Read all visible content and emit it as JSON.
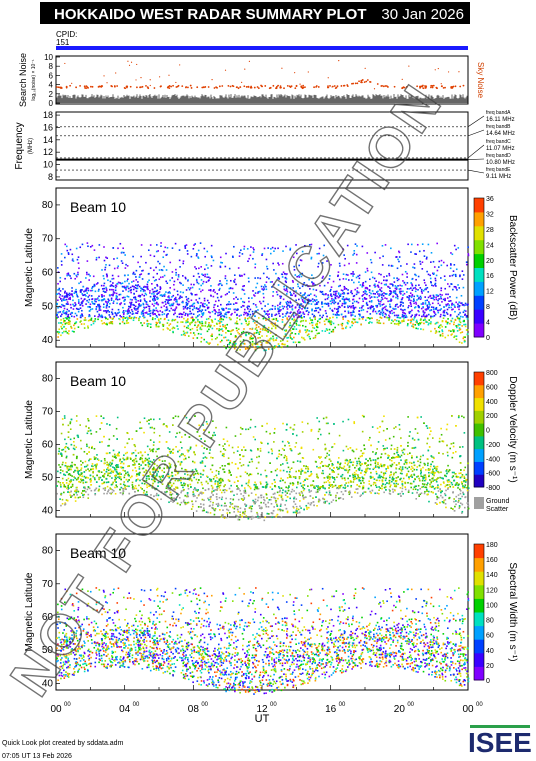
{
  "header": {
    "title": "HOKKAIDO WEST RADAR SUMMARY PLOT",
    "date": "30 Jan 2026",
    "cpid_label": "CPID:",
    "cpid_value": "151"
  },
  "noise_panel": {
    "ylabel": "Search Noise",
    "ylabel_sub": "log₁₀(noise) × 10⁻¹",
    "side_label": "Sky Noise",
    "ticks": [
      "10",
      "8",
      "6",
      "4",
      "2",
      "0"
    ]
  },
  "frequency_panel": {
    "ylabel": "Frequency",
    "ylabel_sub": "(MHz)",
    "ticks": [
      "18",
      "16",
      "14",
      "12",
      "10",
      "8"
    ],
    "bands": [
      {
        "name": "freq bandA",
        "value": "16.11 MHz"
      },
      {
        "name": "freq bandB",
        "value": "14.64 MHz"
      },
      {
        "name": "freq bandC",
        "value": "11.07 MHz"
      },
      {
        "name": "freq bandD",
        "value": "10.80 MHz"
      },
      {
        "name": "freq bandE",
        "value": "9.11 MHz"
      }
    ]
  },
  "panels": [
    {
      "beam": "Beam 10",
      "ylabel": "Magnetic Latitude",
      "yticks": [
        "80",
        "70",
        "60",
        "50",
        "40"
      ],
      "colorbar_label": "Backscatter Power (dB)",
      "colorbar_ticks": [
        "36",
        "32",
        "28",
        "24",
        "20",
        "16",
        "12",
        "8",
        "4",
        "0"
      ]
    },
    {
      "beam": "Beam 10",
      "ylabel": "Magnetic Latitude",
      "yticks": [
        "80",
        "70",
        "60",
        "50",
        "40"
      ],
      "colorbar_label": "Doppler Velocity (m s⁻¹)",
      "colorbar_ticks": [
        "800",
        "600",
        "400",
        "200",
        "0",
        "-200",
        "-400",
        "-600",
        "-800"
      ],
      "ground_label_1": "Ground",
      "ground_label_2": "Scatter"
    },
    {
      "beam": "Beam 10",
      "ylabel": "Magnetic Latitude",
      "yticks": [
        "80",
        "70",
        "60",
        "50",
        "40"
      ],
      "colorbar_label": "Spectral Width (m s⁻¹)",
      "colorbar_ticks": [
        "180",
        "160",
        "140",
        "120",
        "100",
        "80",
        "60",
        "40",
        "20",
        "0"
      ]
    }
  ],
  "xaxis": {
    "label": "UT",
    "ticks": [
      "00",
      "04",
      "08",
      "12",
      "16",
      "20",
      "00"
    ],
    "tick_sup": "00"
  },
  "watermark": "NOT FOR PUBLICATION",
  "footer": {
    "line1": "Quick Look plot created by sddata.adm",
    "line2": "07:05 UT 13 Feb 2026",
    "logo": "ISEE"
  },
  "colors": {
    "power_scale": [
      "#7f00ff",
      "#3a00ff",
      "#0040ff",
      "#00a0ff",
      "#00e0c0",
      "#00d000",
      "#80e000",
      "#e0e000",
      "#ffa000",
      "#ff4000"
    ],
    "velocity_scale": [
      "#2000c0",
      "#0040ff",
      "#00a0ff",
      "#00c080",
      "#40c000",
      "#a0d000",
      "#f0e000",
      "#ffa000",
      "#ff4000"
    ],
    "ground_scatter": "#a0a0a0",
    "cpid_bar": "#1a1aff",
    "noise_points": "#e04000"
  },
  "chart_data": [
    {
      "type": "scatter",
      "title": "Search Noise",
      "ylim": [
        0,
        10
      ],
      "description": "search noise vs UT"
    },
    {
      "type": "scatter",
      "title": "Frequency",
      "ylim": [
        8,
        18
      ],
      "series": [
        {
          "name": "freq bandA",
          "values": [
            16.11
          ]
        },
        {
          "name": "freq bandB",
          "values": [
            14.64
          ]
        },
        {
          "name": "freq bandC",
          "values": [
            11.07
          ]
        },
        {
          "name": "freq bandD",
          "values": [
            10.8
          ]
        },
        {
          "name": "freq bandE",
          "values": [
            9.11
          ]
        }
      ]
    },
    {
      "type": "heatmap",
      "quantity": "Backscatter Power (dB)",
      "xlim": [
        0,
        24
      ],
      "ylim": [
        38,
        85
      ],
      "zlim": [
        0,
        38
      ]
    },
    {
      "type": "heatmap",
      "quantity": "Doppler Velocity (m s⁻¹)",
      "xlim": [
        0,
        24
      ],
      "ylim": [
        38,
        85
      ],
      "zlim": [
        -900,
        900
      ]
    },
    {
      "type": "heatmap",
      "quantity": "Spectral Width (m s⁻¹)",
      "xlim": [
        0,
        24
      ],
      "ylim": [
        38,
        85
      ],
      "zlim": [
        0,
        190
      ]
    }
  ]
}
